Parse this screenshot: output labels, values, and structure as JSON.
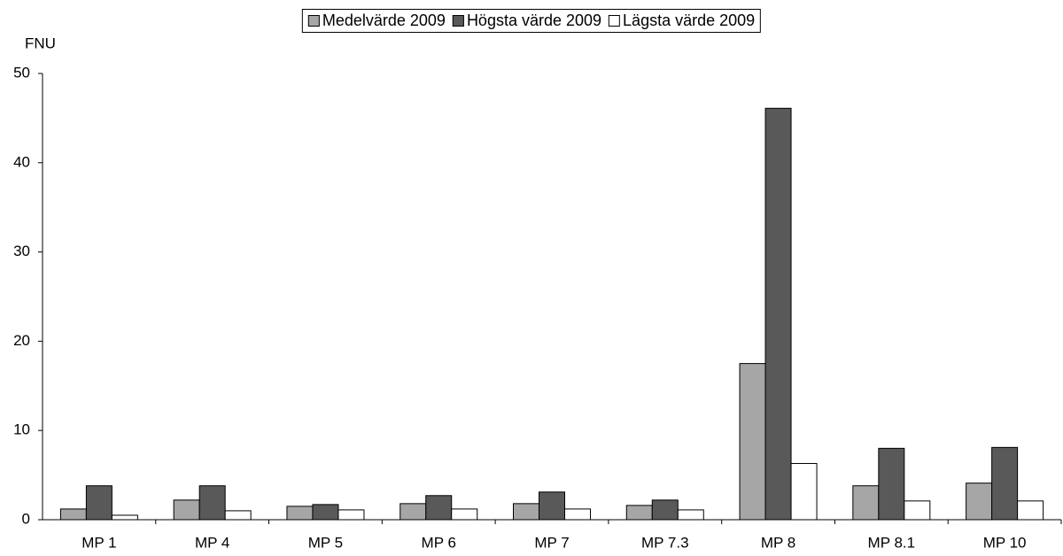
{
  "chart_data": {
    "type": "bar",
    "y_label": "FNU",
    "categories": [
      "MP 1",
      "MP 4",
      "MP 5",
      "MP 6",
      "MP 7",
      "MP 7.3",
      "MP 8",
      "MP 8.1",
      "MP 10"
    ],
    "series": [
      {
        "name": "Medelvärde 2009",
        "color": "#a6a6a6",
        "values": [
          1.2,
          2.2,
          1.5,
          1.8,
          1.8,
          1.6,
          17.5,
          3.8,
          4.1
        ]
      },
      {
        "name": "Högsta värde 2009",
        "color": "#595959",
        "values": [
          3.8,
          3.8,
          1.7,
          2.7,
          3.1,
          2.2,
          46.1,
          8.0,
          8.1
        ]
      },
      {
        "name": "Lägsta värde 2009",
        "color": "#ffffff",
        "values": [
          0.5,
          1.0,
          1.1,
          1.2,
          1.2,
          1.1,
          6.3,
          2.1,
          2.1
        ]
      }
    ],
    "ylim": [
      0,
      50
    ],
    "yticks": [
      0,
      10,
      20,
      30,
      40,
      50
    ],
    "grid": false,
    "legend": "top"
  }
}
